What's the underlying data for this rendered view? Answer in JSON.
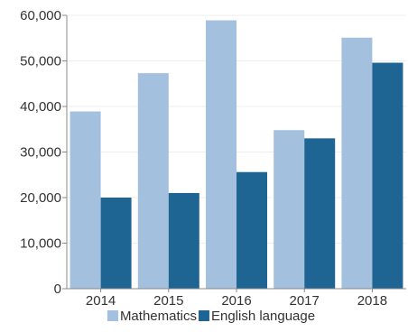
{
  "chart_data": {
    "type": "bar",
    "title": "",
    "xlabel": "",
    "ylabel": "",
    "categories": [
      "2014",
      "2015",
      "2016",
      "2017",
      "2018"
    ],
    "series": [
      {
        "name": "Mathematics",
        "values": [
          38900,
          47300,
          58900,
          34800,
          55100
        ],
        "color": "#a3c0de"
      },
      {
        "name": "English language",
        "values": [
          20000,
          21000,
          25600,
          33000,
          49600
        ],
        "color": "#1f6594"
      }
    ],
    "ylim": [
      0,
      60000
    ],
    "yticks": [
      0,
      10000,
      20000,
      30000,
      40000,
      50000,
      60000
    ],
    "ytick_labels": [
      "0",
      "10,000",
      "20,000",
      "30,000",
      "40,000",
      "50,000",
      "60,000"
    ],
    "grid": true,
    "legend_position": "bottom",
    "colors": {
      "grid": "#eeeeee",
      "axis": "#888888"
    }
  }
}
